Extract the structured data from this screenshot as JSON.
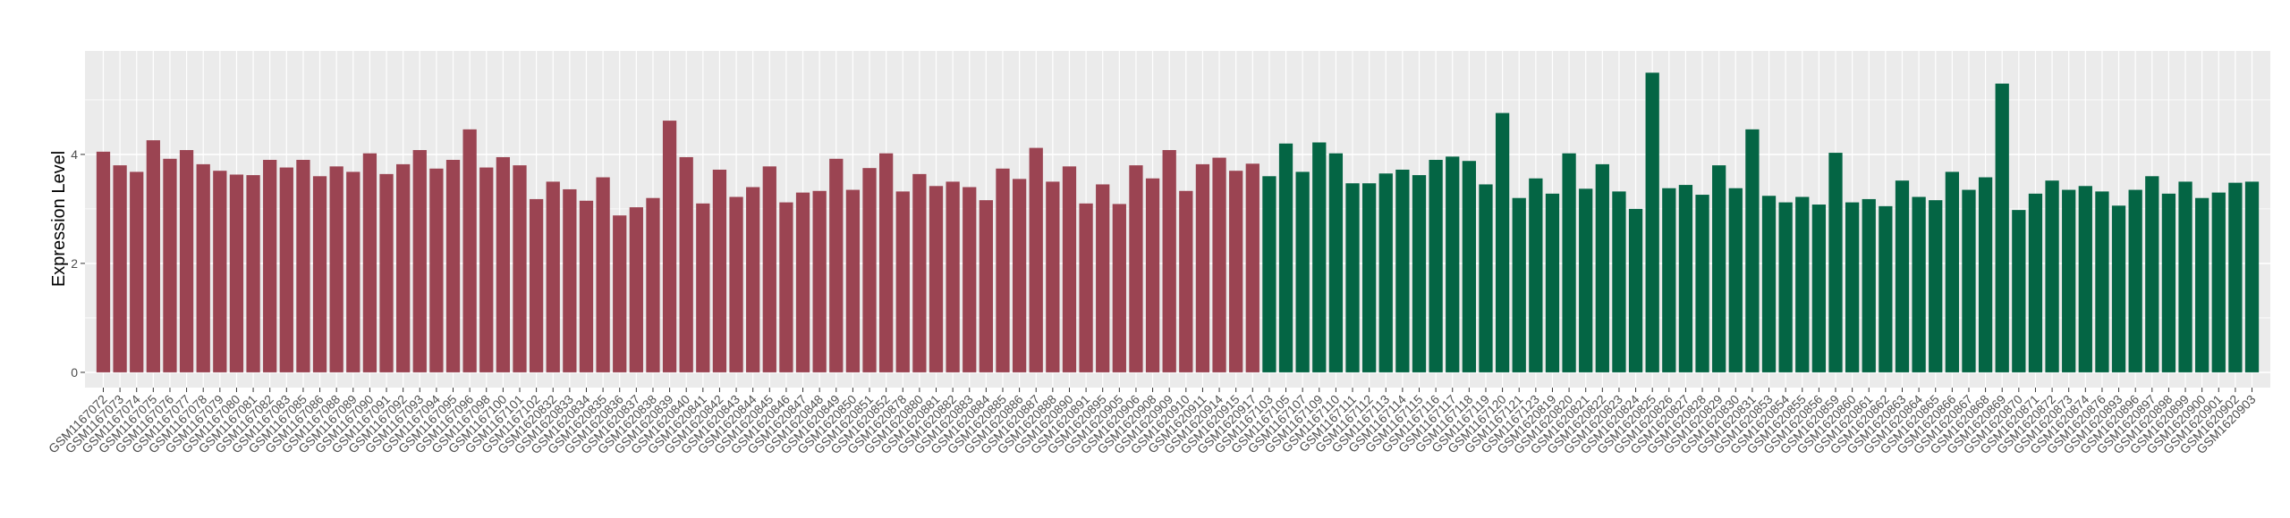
{
  "chart_data": {
    "type": "bar",
    "title": "",
    "xlabel": "",
    "ylabel": "Expression Level",
    "ylim": [
      -0.28,
      5.9
    ],
    "yticks": [
      0,
      2,
      4
    ],
    "grid": true,
    "legend": "none",
    "colors": {
      "group1": "#9b4452",
      "group2": "#046544",
      "panel": "#ebebeb",
      "grid": "#ffffff"
    },
    "series": [
      {
        "color": "#9b4452",
        "categories": [
          "GSM1167072",
          "GSM1167073",
          "GSM1167074",
          "GSM1167075",
          "GSM1167076",
          "GSM1167077",
          "GSM1167078",
          "GSM1167079",
          "GSM1167080",
          "GSM1167081",
          "GSM1167082",
          "GSM1167083",
          "GSM1167085",
          "GSM1167086",
          "GSM1167088",
          "GSM1167089",
          "GSM1167090",
          "GSM1167091",
          "GSM1167092",
          "GSM1167093",
          "GSM1167094",
          "GSM1167095",
          "GSM1167096",
          "GSM1167098",
          "GSM1167100",
          "GSM1167101",
          "GSM1167102",
          "GSM1620832",
          "GSM1620833",
          "GSM1620834",
          "GSM1620835",
          "GSM1620836",
          "GSM1620837",
          "GSM1620838",
          "GSM1620839",
          "GSM1620840",
          "GSM1620841",
          "GSM1620842",
          "GSM1620843",
          "GSM1620844",
          "GSM1620845",
          "GSM1620846",
          "GSM1620847",
          "GSM1620848",
          "GSM1620849",
          "GSM1620850",
          "GSM1620851",
          "GSM1620852",
          "GSM1620878",
          "GSM1620880",
          "GSM1620881",
          "GSM1620882",
          "GSM1620883",
          "GSM1620884",
          "GSM1620885",
          "GSM1620886",
          "GSM1620887",
          "GSM1620888",
          "GSM1620890",
          "GSM1620891",
          "GSM1620895",
          "GSM1620905",
          "GSM1620906",
          "GSM1620908",
          "GSM1620909",
          "GSM1620910",
          "GSM1620911",
          "GSM1620914",
          "GSM1620915",
          "GSM1620917"
        ],
        "values": [
          4.05,
          3.8,
          3.68,
          4.26,
          3.92,
          4.08,
          3.82,
          3.7,
          3.63,
          3.62,
          3.9,
          3.76,
          3.9,
          3.6,
          3.78,
          3.68,
          4.02,
          3.64,
          3.82,
          4.08,
          3.74,
          3.9,
          4.46,
          3.76,
          3.95,
          3.8,
          3.18,
          3.5,
          3.36,
          3.15,
          3.58,
          2.88,
          3.03,
          3.2,
          4.62,
          3.95,
          3.1,
          3.72,
          3.22,
          3.4,
          3.78,
          3.12,
          3.3,
          3.33,
          3.92,
          3.35,
          3.75,
          4.02,
          3.32,
          3.64,
          3.42,
          3.5,
          3.4,
          3.16,
          3.74,
          3.55,
          4.12,
          3.5,
          3.78,
          3.1,
          3.45,
          3.09,
          3.8,
          3.56,
          4.08,
          3.33,
          3.82,
          3.94,
          3.7,
          3.83
        ]
      },
      {
        "color": "#046544",
        "categories": [
          "GSM1167103",
          "GSM1167105",
          "GSM1167107",
          "GSM1167109",
          "GSM1167110",
          "GSM1167111",
          "GSM1167112",
          "GSM1167113",
          "GSM1167114",
          "GSM1167115",
          "GSM1167116",
          "GSM1167117",
          "GSM1167118",
          "GSM1167119",
          "GSM1167120",
          "GSM1167121",
          "GSM1167123",
          "GSM1620819",
          "GSM1620820",
          "GSM1620821",
          "GSM1620822",
          "GSM1620823",
          "GSM1620824",
          "GSM1620825",
          "GSM1620826",
          "GSM1620827",
          "GSM1620828",
          "GSM1620829",
          "GSM1620830",
          "GSM1620831",
          "GSM1620853",
          "GSM1620854",
          "GSM1620855",
          "GSM1620856",
          "GSM1620859",
          "GSM1620860",
          "GSM1620861",
          "GSM1620862",
          "GSM1620863",
          "GSM1620864",
          "GSM1620865",
          "GSM1620866",
          "GSM1620867",
          "GSM1620868",
          "GSM1620869",
          "GSM1620870",
          "GSM1620871",
          "GSM1620872",
          "GSM1620873",
          "GSM1620874",
          "GSM1620876",
          "GSM1620893",
          "GSM1620896",
          "GSM1620897",
          "GSM1620898",
          "GSM1620899",
          "GSM1620900",
          "GSM1620901",
          "GSM1620902",
          "GSM1620903"
        ],
        "values": [
          3.6,
          4.2,
          3.68,
          4.22,
          4.02,
          3.47,
          3.47,
          3.65,
          3.72,
          3.62,
          3.9,
          3.96,
          3.88,
          3.45,
          4.76,
          3.2,
          3.56,
          3.28,
          4.02,
          3.37,
          3.82,
          3.32,
          3.0,
          5.5,
          3.38,
          3.44,
          3.26,
          3.8,
          3.38,
          4.46,
          3.24,
          3.12,
          3.22,
          3.08,
          4.03,
          3.12,
          3.18,
          3.05,
          3.52,
          3.22,
          3.16,
          3.68,
          3.35,
          3.58,
          5.3,
          2.98,
          3.28,
          3.52,
          3.35,
          3.42,
          3.32,
          3.06,
          3.35,
          3.6,
          3.28,
          3.5,
          3.2,
          3.3,
          3.48,
          3.5
        ]
      }
    ]
  }
}
